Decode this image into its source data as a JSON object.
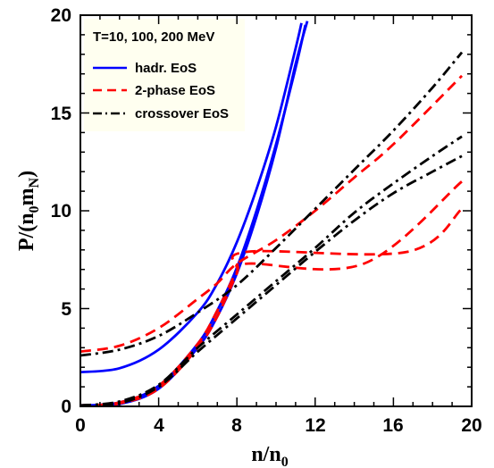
{
  "chart_data": {
    "type": "line",
    "legend_title": "T=10, 100, 200 MeV",
    "legend_position": "top-left",
    "xlabel": "n/n",
    "xlabel_sub": "0",
    "ylabel_prefix": "P/(n",
    "ylabel_sub1": "0",
    "ylabel_mid": "m",
    "ylabel_sub2": "N",
    "ylabel_suffix": ")",
    "xlim": [
      0,
      20
    ],
    "ylim": [
      0,
      20
    ],
    "xticks": [
      "0",
      "4",
      "8",
      "12",
      "16",
      "20"
    ],
    "yticks": [
      "0",
      "5",
      "10",
      "15",
      "20"
    ],
    "grid": false,
    "colors": {
      "hadr": "#0000ff",
      "two_phase": "#ff0000",
      "crossover": "#000000",
      "legend_bg": "#fffff0"
    },
    "series": [
      {
        "name": "hadr. EoS",
        "style": "solid",
        "color": "#0000ff",
        "curves": [
          [
            [
              0,
              0
            ],
            [
              2,
              0.12
            ],
            [
              4,
              0.9
            ],
            [
              6,
              3.0
            ],
            [
              7,
              4.6
            ],
            [
              8,
              6.8
            ],
            [
              9,
              9.7
            ],
            [
              10,
              13.2
            ],
            [
              11,
              17.5
            ],
            [
              11.6,
              19.7
            ]
          ],
          [
            [
              0,
              0.05
            ],
            [
              2,
              0.2
            ],
            [
              4,
              1.05
            ],
            [
              6,
              3.2
            ],
            [
              7,
              4.9
            ],
            [
              8,
              7.1
            ],
            [
              9,
              10.0
            ],
            [
              10,
              13.4
            ],
            [
              11,
              17.3
            ],
            [
              11.5,
              19.5
            ]
          ],
          [
            [
              0,
              1.75
            ],
            [
              2,
              1.95
            ],
            [
              4,
              2.9
            ],
            [
              6,
              4.8
            ],
            [
              7,
              6.3
            ],
            [
              8,
              8.4
            ],
            [
              9,
              11.1
            ],
            [
              10,
              14.3
            ],
            [
              11,
              18.3
            ],
            [
              11.3,
              19.6
            ]
          ]
        ]
      },
      {
        "name": "2-phase EoS",
        "style": "dashed",
        "color": "#ff0000",
        "curves": [
          [
            [
              0,
              0
            ],
            [
              2,
              0.15
            ],
            [
              4,
              0.9
            ],
            [
              6,
              3.0
            ],
            [
              7,
              4.6
            ],
            [
              8,
              6.8
            ],
            [
              8.5,
              7.9
            ],
            [
              16.7,
              7.9
            ],
            [
              19.5,
              10.1
            ]
          ],
          [
            [
              0,
              0.05
            ],
            [
              2,
              0.2
            ],
            [
              4,
              1.05
            ],
            [
              6,
              3.2
            ],
            [
              7,
              4.9
            ],
            [
              8,
              6.9
            ],
            [
              8.6,
              7.3
            ],
            [
              14.5,
              7.3
            ],
            [
              19.5,
              11.5
            ]
          ],
          [
            [
              0,
              2.8
            ],
            [
              2,
              3.1
            ],
            [
              4,
              4.0
            ],
            [
              6,
              5.5
            ],
            [
              7,
              6.3
            ],
            [
              8,
              7.3
            ],
            [
              10,
              8.5
            ],
            [
              12,
              10.0
            ],
            [
              14,
              11.7
            ],
            [
              16,
              13.4
            ],
            [
              19.5,
              16.9
            ]
          ]
        ]
      },
      {
        "name": "crossover EoS",
        "style": "dashdot",
        "color": "#000000",
        "curves": [
          [
            [
              0,
              0
            ],
            [
              2,
              0.15
            ],
            [
              4,
              1.0
            ],
            [
              6,
              2.8
            ],
            [
              8,
              4.5
            ],
            [
              10,
              6.2
            ],
            [
              12,
              7.9
            ],
            [
              14,
              9.5
            ],
            [
              16,
              10.9
            ],
            [
              18,
              12.0
            ],
            [
              19.5,
              12.8
            ]
          ],
          [
            [
              0,
              0.05
            ],
            [
              2,
              0.25
            ],
            [
              4,
              1.1
            ],
            [
              6,
              3.0
            ],
            [
              8,
              4.7
            ],
            [
              10,
              6.4
            ],
            [
              12,
              8.1
            ],
            [
              14,
              9.9
            ],
            [
              16,
              11.4
            ],
            [
              18,
              12.8
            ],
            [
              19.5,
              13.8
            ]
          ],
          [
            [
              0,
              2.6
            ],
            [
              2,
              2.9
            ],
            [
              4,
              3.6
            ],
            [
              6,
              4.8
            ],
            [
              8,
              6.2
            ],
            [
              10,
              8.1
            ],
            [
              12,
              10.1
            ],
            [
              14,
              12.1
            ],
            [
              16,
              14.1
            ],
            [
              18,
              16.3
            ],
            [
              19.5,
              18.1
            ]
          ]
        ]
      }
    ]
  }
}
